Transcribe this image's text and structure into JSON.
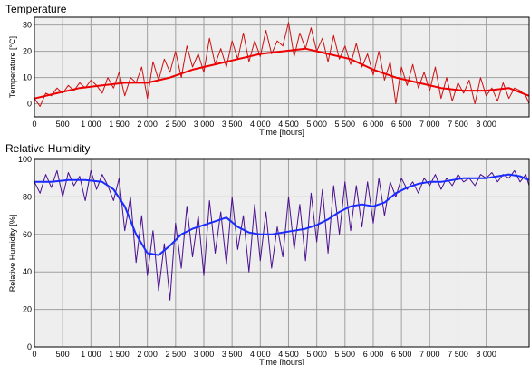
{
  "window": {
    "background": "#ffffff",
    "plot_background": "#eeeeee",
    "grid_color": "#a0a0a0"
  },
  "temperature_panel": {
    "title": "Temperature",
    "chart_data": {
      "type": "line",
      "title": "Temperature",
      "xlabel": "Time [hours]",
      "ylabel": "Temperature [°C]",
      "xlim": [
        0,
        8760
      ],
      "ylim": [
        -5,
        33
      ],
      "x_ticks": [
        "0",
        "500",
        "1 000",
        "1 500",
        "2 000",
        "2 500",
        "3 000",
        "3 500",
        "4 000",
        "4 500",
        "5 000",
        "5 500",
        "6 000",
        "6 500",
        "7 000",
        "7 500",
        "8 000"
      ],
      "y_ticks": [
        "0",
        "10",
        "20",
        "30"
      ],
      "grid": true,
      "series": [
        {
          "color": "#cc1111",
          "style": "hourly",
          "x": [
            0,
            100,
            200,
            300,
            400,
            500,
            600,
            700,
            800,
            900,
            1000,
            1100,
            1200,
            1300,
            1400,
            1500,
            1600,
            1700,
            1800,
            1900,
            2000,
            2100,
            2200,
            2300,
            2400,
            2500,
            2600,
            2700,
            2800,
            2900,
            3000,
            3100,
            3200,
            3300,
            3400,
            3500,
            3600,
            3700,
            3800,
            3900,
            4000,
            4100,
            4200,
            4300,
            4400,
            4500,
            4600,
            4700,
            4800,
            4900,
            5000,
            5100,
            5200,
            5300,
            5400,
            5500,
            5600,
            5700,
            5800,
            5900,
            6000,
            6100,
            6200,
            6300,
            6400,
            6500,
            6600,
            6700,
            6800,
            6900,
            7000,
            7100,
            7200,
            7300,
            7400,
            7500,
            7600,
            7700,
            7800,
            7900,
            8000,
            8100,
            8200,
            8300,
            8400,
            8500,
            8600,
            8700,
            8760
          ],
          "y": [
            2,
            -1,
            4,
            3,
            6,
            4,
            7,
            5,
            8,
            6,
            9,
            7,
            4,
            10,
            6,
            12,
            3,
            10,
            8,
            14,
            2,
            16,
            9,
            17,
            12,
            20,
            10,
            22,
            14,
            19,
            12,
            25,
            15,
            21,
            14,
            24,
            17,
            27,
            16,
            24,
            18,
            28,
            19,
            24,
            22,
            31,
            18,
            27,
            21,
            29,
            20,
            25,
            16,
            26,
            17,
            22,
            15,
            23,
            14,
            19,
            11,
            20,
            9,
            16,
            0,
            14,
            7,
            15,
            6,
            12,
            5,
            14,
            2,
            10,
            1,
            8,
            4,
            9,
            0,
            10,
            3,
            6,
            1,
            8,
            2,
            6,
            5,
            3,
            0
          ]
        },
        {
          "color": "#ee0000",
          "style": "smoothed",
          "x": [
            0,
            400,
            800,
            1200,
            1600,
            2000,
            2400,
            2800,
            3200,
            3600,
            4000,
            4400,
            4800,
            5200,
            5600,
            6000,
            6400,
            6800,
            7200,
            7600,
            8000,
            8400,
            8760
          ],
          "y": [
            2,
            4,
            6,
            7,
            8,
            8,
            10,
            13,
            15,
            17,
            19,
            20,
            21,
            19,
            17,
            13,
            10,
            8,
            6,
            5,
            5,
            6,
            3
          ]
        }
      ]
    }
  },
  "humidity_panel": {
    "title": "Relative Humidity",
    "chart_data": {
      "type": "line",
      "title": "Relative Humidity",
      "xlabel": "Time [hours]",
      "ylabel": "Relative Humidity [%]",
      "xlim": [
        0,
        8760
      ],
      "ylim": [
        0,
        100
      ],
      "x_ticks": [
        "0",
        "500",
        "1 000",
        "1 500",
        "2 000",
        "2 500",
        "3 000",
        "3 500",
        "4 000",
        "4 500",
        "5 000",
        "5 500",
        "6 000",
        "6 500",
        "7 000",
        "7 500",
        "8 000"
      ],
      "y_ticks": [
        "0",
        "20",
        "40",
        "60",
        "80",
        "100"
      ],
      "grid": true,
      "series": [
        {
          "color": "#4b0f8f",
          "style": "hourly",
          "x": [
            0,
            100,
            200,
            300,
            400,
            500,
            600,
            700,
            800,
            900,
            1000,
            1100,
            1200,
            1300,
            1400,
            1500,
            1600,
            1700,
            1800,
            1900,
            2000,
            2100,
            2200,
            2300,
            2400,
            2500,
            2600,
            2700,
            2800,
            2900,
            3000,
            3100,
            3200,
            3300,
            3400,
            3500,
            3600,
            3700,
            3800,
            3900,
            4000,
            4100,
            4200,
            4300,
            4400,
            4500,
            4600,
            4700,
            4800,
            4900,
            5000,
            5100,
            5200,
            5300,
            5400,
            5500,
            5600,
            5700,
            5800,
            5900,
            6000,
            6100,
            6200,
            6300,
            6400,
            6500,
            6600,
            6700,
            6800,
            6900,
            7000,
            7100,
            7200,
            7300,
            7400,
            7500,
            7600,
            7700,
            7800,
            7900,
            8000,
            8100,
            8200,
            8300,
            8400,
            8500,
            8600,
            8700,
            8760
          ],
          "y": [
            88,
            82,
            92,
            85,
            94,
            80,
            93,
            86,
            91,
            78,
            94,
            84,
            92,
            86,
            78,
            90,
            62,
            80,
            45,
            70,
            38,
            62,
            30,
            55,
            25,
            66,
            42,
            75,
            48,
            70,
            38,
            78,
            50,
            72,
            44,
            80,
            52,
            70,
            40,
            76,
            46,
            72,
            42,
            64,
            48,
            80,
            52,
            76,
            46,
            82,
            56,
            84,
            50,
            86,
            60,
            88,
            62,
            86,
            64,
            88,
            66,
            90,
            70,
            88,
            80,
            90,
            84,
            88,
            82,
            90,
            86,
            92,
            84,
            90,
            86,
            92,
            88,
            90,
            86,
            92,
            90,
            93,
            88,
            92,
            90,
            94,
            88,
            92,
            86
          ]
        },
        {
          "color": "#1a2bff",
          "style": "smoothed",
          "x": [
            0,
            300,
            600,
            900,
            1200,
            1400,
            1600,
            1800,
            2000,
            2200,
            2400,
            2600,
            2800,
            3000,
            3200,
            3400,
            3600,
            3800,
            4000,
            4200,
            4400,
            4600,
            4800,
            5000,
            5200,
            5400,
            5600,
            5800,
            6000,
            6200,
            6400,
            6600,
            6800,
            7000,
            7200,
            7400,
            7600,
            7800,
            8000,
            8200,
            8400,
            8600,
            8760
          ],
          "y": [
            88,
            88,
            89,
            89,
            88,
            84,
            75,
            60,
            50,
            49,
            54,
            60,
            63,
            65,
            67,
            69,
            64,
            61,
            60,
            60,
            61,
            62,
            63,
            65,
            68,
            72,
            75,
            76,
            75,
            77,
            82,
            85,
            87,
            88,
            88,
            89,
            90,
            90,
            90,
            91,
            92,
            91,
            89
          ]
        }
      ]
    }
  }
}
